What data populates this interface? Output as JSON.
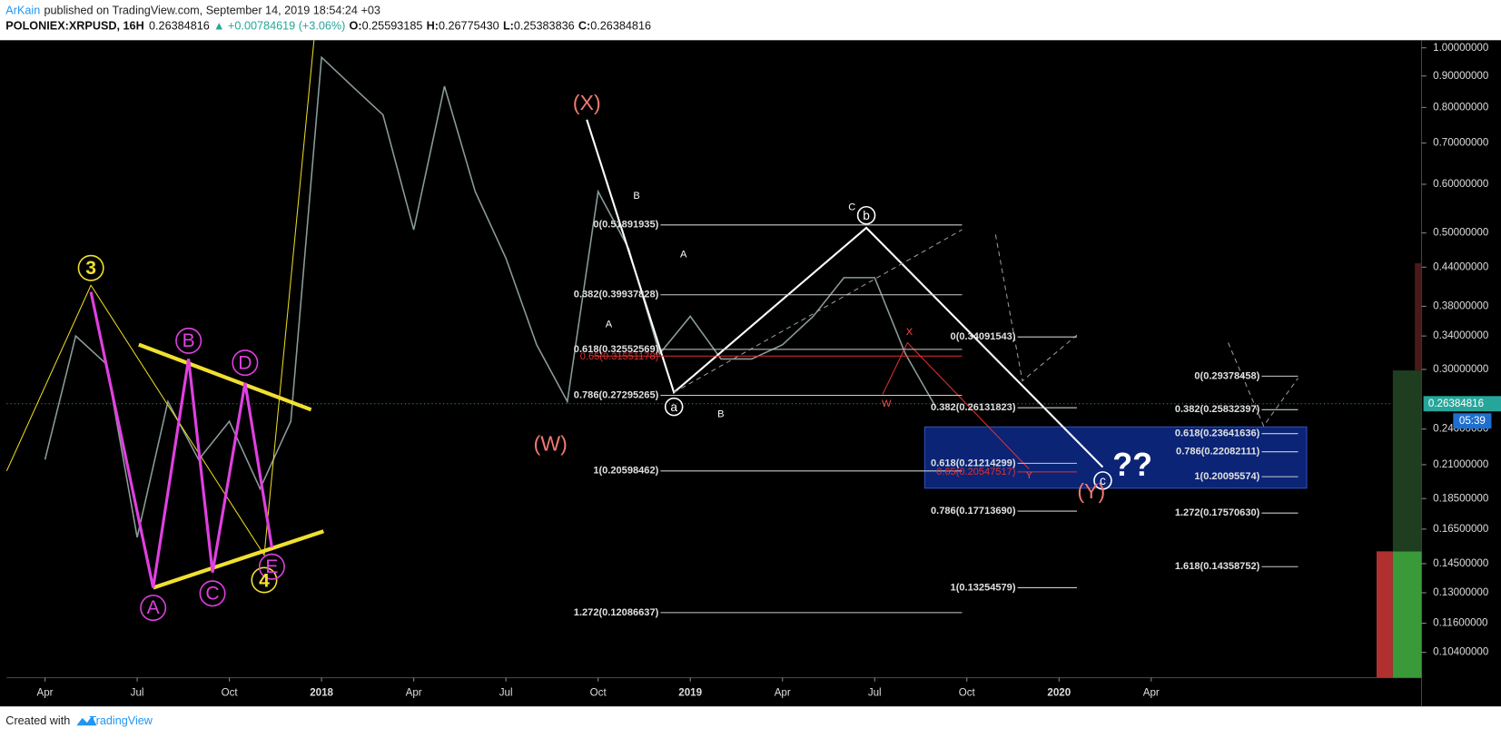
{
  "header": {
    "author": "ArKain",
    "published": "published on TradingView.com, September 14, 2019 18:54:24 +03",
    "symbol": "POLONIEX:XRPUSD, 16H",
    "last": "0.26384816",
    "change": "▲ +0.00784619 (+3.06%)",
    "ohlc": [
      {
        "label": "O:",
        "value": "0.25593185"
      },
      {
        "label": "H:",
        "value": "0.26775430"
      },
      {
        "label": "L:",
        "value": "0.25383836"
      },
      {
        "label": "C:",
        "value": "0.26384816"
      }
    ]
  },
  "chart_data": {
    "type": "line",
    "log_scale": true,
    "color": "#8a9a9a",
    "categories": [
      "Apr",
      null,
      null,
      "Jul",
      null,
      null,
      "Oct",
      null,
      null,
      "2018",
      null,
      null,
      "Apr",
      null,
      null,
      "Jul",
      null,
      null,
      "Oct",
      null,
      null,
      "2019",
      null,
      null,
      "Apr",
      null,
      null,
      "Jul",
      null,
      null,
      "Oct",
      null,
      null,
      "2020",
      null,
      null,
      "Apr"
    ],
    "values": [
      0.214,
      0.34,
      0.306,
      0.16,
      0.266,
      0.214,
      0.247,
      0.192,
      0.247,
      0.965,
      0.866,
      0.778,
      0.506,
      0.866,
      0.584,
      0.455,
      0.329,
      0.266,
      0.584,
      0.471,
      0.318,
      0.366,
      0.312,
      0.312,
      0.329,
      0.366,
      0.423,
      0.423,
      0.318,
      0.26,
      null,
      null,
      null,
      null,
      null,
      null,
      null
    ],
    "ylim": [
      0.0946,
      1.029
    ],
    "yticks": [
      {
        "value": 1,
        "label": "1.00000000"
      },
      {
        "value": 0.9,
        "label": "0.90000000"
      },
      {
        "value": 0.8,
        "label": "0.80000000"
      },
      {
        "value": 0.7,
        "label": "0.70000000"
      },
      {
        "value": 0.6,
        "label": "0.60000000"
      },
      {
        "value": 0.5,
        "label": "0.50000000"
      },
      {
        "value": 0.44,
        "label": "0.44000000"
      },
      {
        "value": 0.38,
        "label": "0.38000000"
      },
      {
        "value": 0.34,
        "label": "0.34000000"
      },
      {
        "value": 0.3,
        "label": "0.30000000"
      },
      {
        "value": 0.24,
        "label": "0.24000000"
      },
      {
        "value": 0.21,
        "label": "0.21000000"
      },
      {
        "value": 0.185,
        "label": "0.18500000"
      },
      {
        "value": 0.165,
        "label": "0.16500000"
      },
      {
        "value": 0.145,
        "label": "0.14500000"
      },
      {
        "value": 0.13,
        "label": "0.13000000"
      },
      {
        "value": 0.116,
        "label": "0.11600000"
      },
      {
        "value": 0.104,
        "label": "0.10400000"
      }
    ],
    "last_price": 0.26384816,
    "countdown": "05:39"
  },
  "labels": [
    "3",
    "4",
    "A",
    "B",
    "C",
    "D",
    "E",
    "(X)",
    "(W)",
    "(Y)",
    "a",
    "b",
    "c",
    "??",
    "B",
    "A",
    "A",
    "B",
    "C",
    "X",
    "W",
    "Y"
  ],
  "fib_levels": [
    [
      "0(0.51891935)",
      "0.382(0.39937828)",
      "0.618(0.32552569)",
      "0.65(0.31551178)",
      "0.786(0.27295265)",
      "1(0.20598462)",
      "1.272(0.12086637)"
    ],
    [
      "0(0.34091543)",
      "0.382(0.26131823)",
      "0.618(0.21214299)",
      "0.65(0.20547517)",
      "0.786(0.17713690)",
      "1(0.13254579)"
    ],
    [
      "0(0.29378458)",
      "0.382(0.25832397)",
      "0.618(0.23641636)",
      "0.786(0.22082111)",
      "1(0.20095574)",
      "1.272(0.17570630)",
      "1.618(0.14358752)"
    ]
  ],
  "footer": {
    "created": "Created with",
    "brand": "TradingView"
  }
}
